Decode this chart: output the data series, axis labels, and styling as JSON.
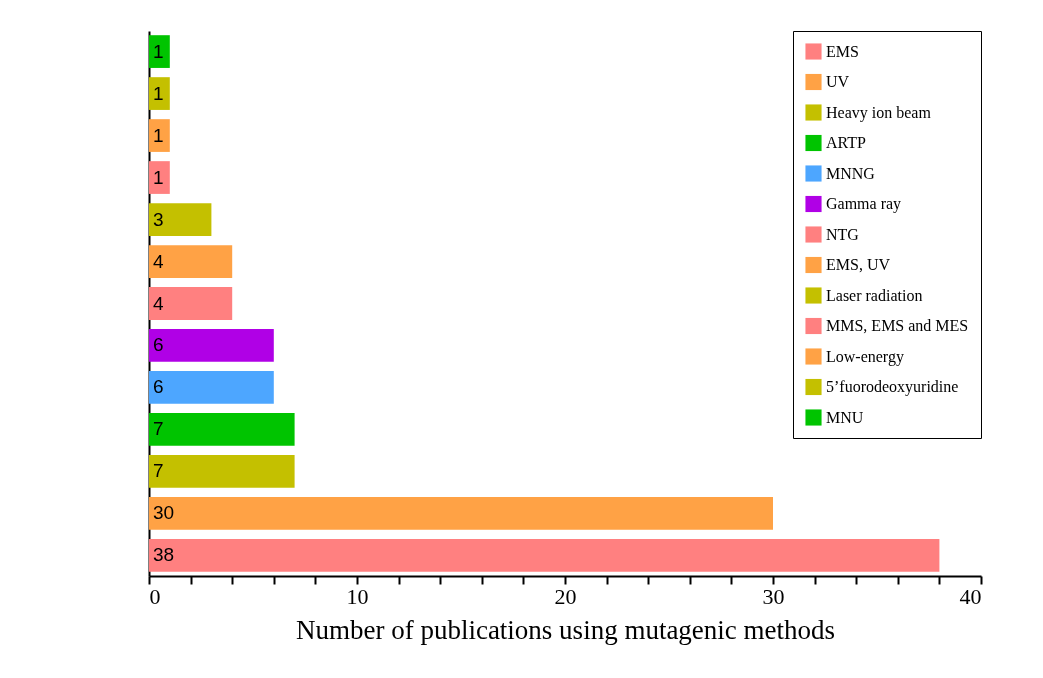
{
  "chart_data": {
    "type": "bar",
    "orientation": "horizontal",
    "xlabel": "Number of publications using mutagenic methods",
    "categories": [
      null,
      null,
      null,
      null,
      null,
      null,
      null,
      null,
      null,
      null,
      null,
      null,
      null
    ],
    "series": [
      {
        "name": "EMS",
        "color": "#ff8080",
        "values": [
          null,
          null,
          null,
          null,
          null,
          null,
          null,
          null,
          null,
          null,
          null,
          null,
          38
        ]
      },
      {
        "name": "UV",
        "color": "#ffa245",
        "values": [
          null,
          null,
          null,
          null,
          null,
          null,
          null,
          null,
          null,
          null,
          null,
          30,
          null
        ]
      },
      {
        "name": "Heavy ion beam",
        "color": "#c4c000",
        "values": [
          null,
          null,
          null,
          null,
          null,
          null,
          null,
          null,
          null,
          null,
          7,
          null,
          null
        ]
      },
      {
        "name": "ARTP",
        "color": "#00c400",
        "values": [
          null,
          null,
          null,
          null,
          null,
          null,
          null,
          null,
          null,
          7,
          null,
          null,
          null
        ]
      },
      {
        "name": "MNNG",
        "color": "#4da6ff",
        "values": [
          null,
          null,
          null,
          null,
          null,
          null,
          null,
          null,
          6,
          null,
          null,
          null,
          null
        ]
      },
      {
        "name": "Gamma ray",
        "color": "#b000e6",
        "values": [
          null,
          null,
          null,
          null,
          null,
          null,
          null,
          6,
          null,
          null,
          null,
          null,
          null
        ]
      },
      {
        "name": "NTG",
        "color": "#ff8080",
        "values": [
          null,
          null,
          null,
          null,
          null,
          null,
          4,
          null,
          null,
          null,
          null,
          null,
          null
        ]
      },
      {
        "name": "EMS, UV",
        "color": "#ffa245",
        "values": [
          null,
          null,
          null,
          null,
          null,
          4,
          null,
          null,
          null,
          null,
          null,
          null,
          null
        ]
      },
      {
        "name": "Laser radiation",
        "color": "#c4c000",
        "values": [
          null,
          null,
          null,
          null,
          3,
          null,
          null,
          null,
          null,
          null,
          null,
          null,
          null
        ]
      },
      {
        "name": "MMS, EMS and MES",
        "color": "#ff8080",
        "values": [
          null,
          null,
          null,
          1,
          null,
          null,
          null,
          null,
          null,
          null,
          null,
          null,
          null
        ]
      },
      {
        "name": "Low-energy",
        "color": "#ffa245",
        "values": [
          null,
          null,
          1,
          null,
          null,
          null,
          null,
          null,
          null,
          null,
          null,
          null,
          null
        ]
      },
      {
        "name": "5’fuorodeoxyuridine",
        "color": "#c4c000",
        "values": [
          null,
          1,
          null,
          null,
          null,
          null,
          null,
          null,
          null,
          null,
          null,
          null,
          null
        ]
      },
      {
        "name": "MNU",
        "color": "#00c400",
        "values": [
          1,
          null,
          null,
          null,
          null,
          null,
          null,
          null,
          null,
          null,
          null,
          null,
          null
        ]
      }
    ],
    "xlim": [
      0,
      40
    ],
    "xticks": [
      0,
      {
        "value": 2,
        "label": null
      },
      {
        "value": 4,
        "label": null
      },
      {
        "value": 6,
        "label": null
      },
      {
        "value": 8,
        "label": null
      },
      10,
      {
        "value": 12,
        "label": null
      },
      {
        "value": 14,
        "label": null
      },
      {
        "value": 16,
        "label": null
      },
      {
        "value": 18,
        "label": null
      },
      20,
      {
        "value": 22,
        "label": null
      },
      {
        "value": 24,
        "label": null
      },
      {
        "value": 26,
        "label": null
      },
      {
        "value": 28,
        "label": null
      },
      30,
      {
        "value": 32,
        "label": null
      },
      {
        "value": 34,
        "label": null
      },
      {
        "value": 36,
        "label": null
      },
      {
        "value": 38,
        "label": null
      },
      40
    ],
    "data_labels": true,
    "legend": "top right",
    "grid": false
  }
}
